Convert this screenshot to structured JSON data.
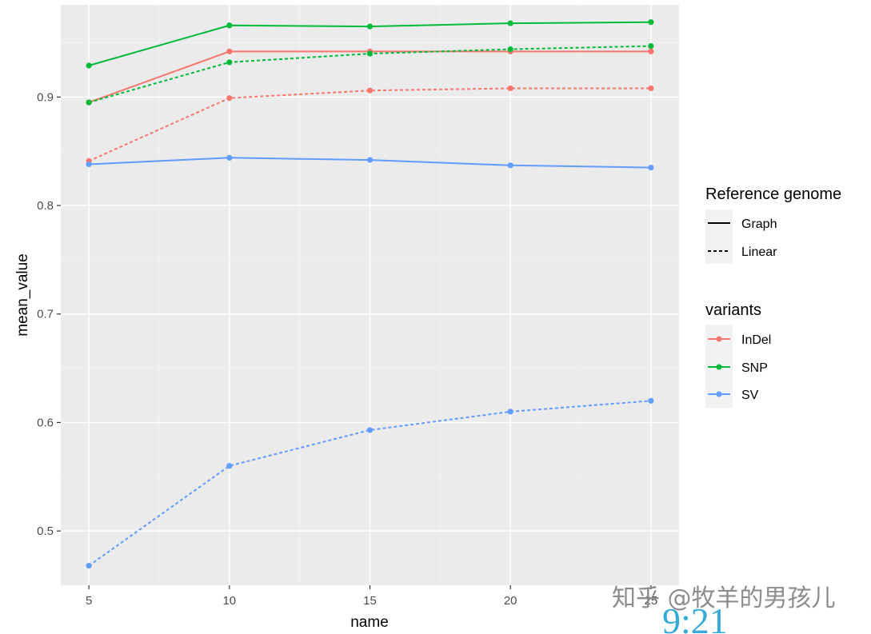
{
  "chart_data": {
    "type": "line",
    "xlabel": "name",
    "ylabel": "mean_value",
    "x": [
      5,
      10,
      15,
      20,
      25
    ],
    "xlim": [
      4,
      26
    ],
    "ylim": [
      0.45,
      0.985
    ],
    "xticks": [
      "5",
      "10",
      "15",
      "20",
      "25"
    ],
    "yticks": [
      "0.5",
      "0.6",
      "0.7",
      "0.8",
      "0.9"
    ],
    "grid": true,
    "legend_position": "right",
    "series": [
      {
        "variant": "InDel",
        "reference": "Graph",
        "values": [
          0.895,
          0.942,
          0.942,
          0.942,
          0.942
        ]
      },
      {
        "variant": "InDel",
        "reference": "Linear",
        "values": [
          0.841,
          0.899,
          0.906,
          0.908,
          0.908
        ]
      },
      {
        "variant": "SNP",
        "reference": "Graph",
        "values": [
          0.929,
          0.966,
          0.965,
          0.968,
          0.969
        ]
      },
      {
        "variant": "SNP",
        "reference": "Linear",
        "values": [
          0.895,
          0.932,
          0.94,
          0.944,
          0.947
        ]
      },
      {
        "variant": "SV",
        "reference": "Graph",
        "values": [
          0.838,
          0.844,
          0.842,
          0.837,
          0.835
        ]
      },
      {
        "variant": "SV",
        "reference": "Linear",
        "values": [
          0.468,
          0.56,
          0.593,
          0.61,
          0.62
        ]
      }
    ],
    "legends": {
      "linetype": {
        "title": "Reference genome",
        "entries": [
          "Graph",
          "Linear"
        ]
      },
      "color": {
        "title": "variants",
        "entries": [
          "InDel",
          "SNP",
          "SV"
        ]
      }
    }
  },
  "colors": {
    "InDel": "#f8766d",
    "SNP": "#00ba38",
    "SV": "#619cff",
    "panel": "#ebebeb",
    "grid": "#ffffff"
  },
  "overlay": {
    "watermark": "知乎 @牧羊的男孩儿",
    "clock": "9:21"
  }
}
